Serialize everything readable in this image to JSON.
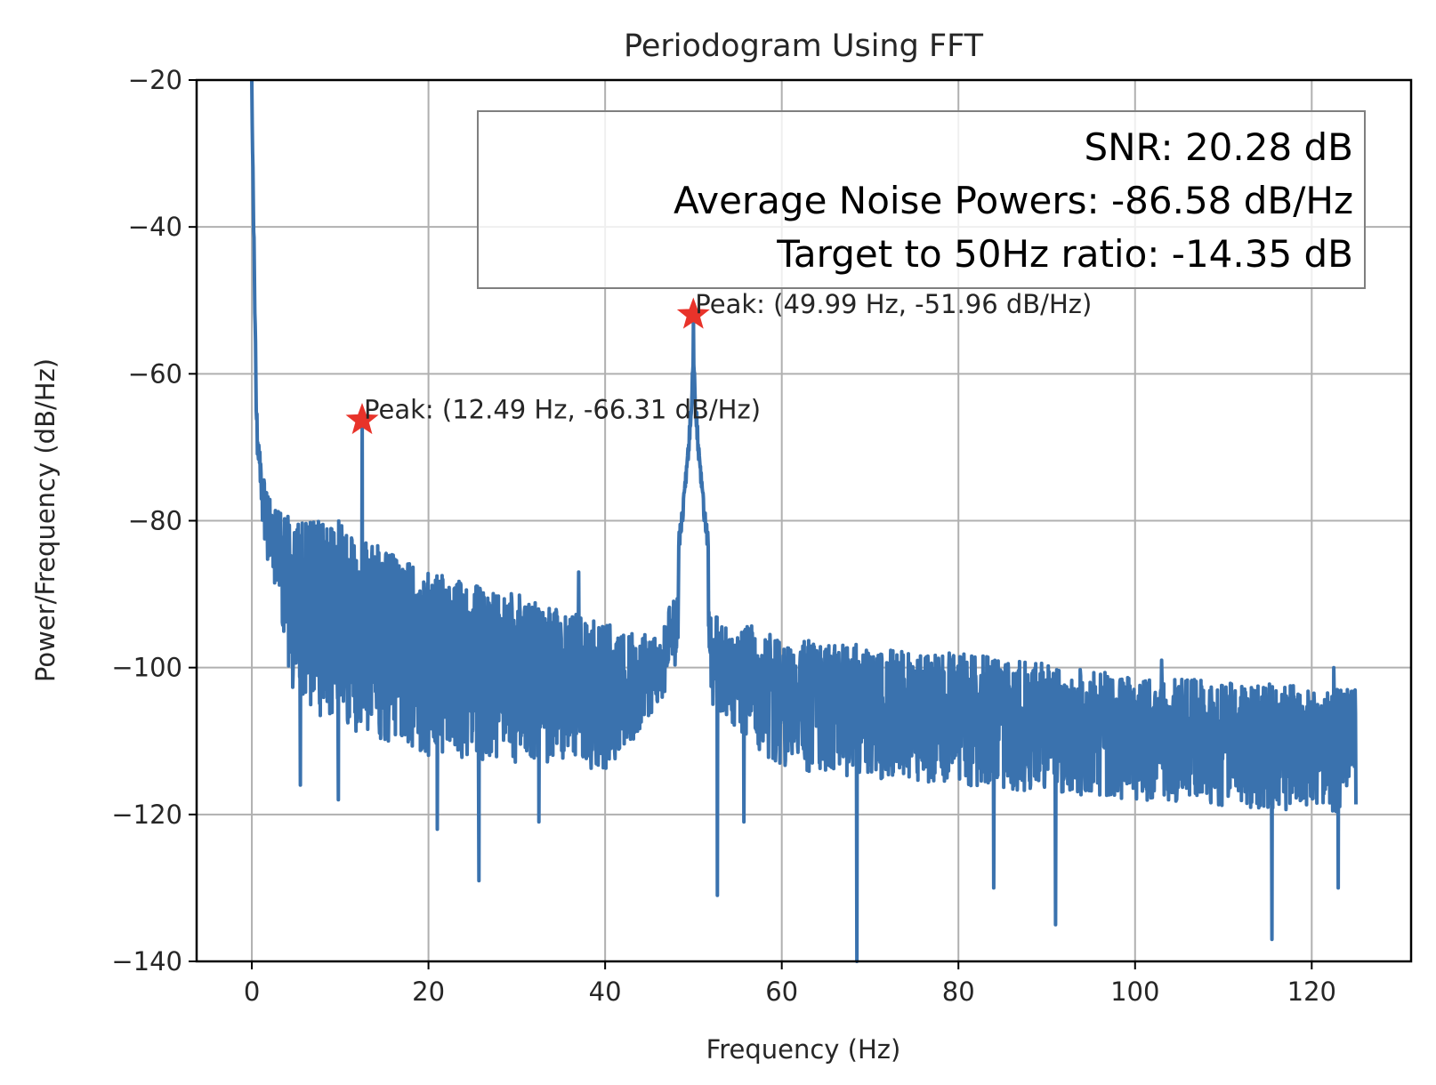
{
  "chart_data": {
    "type": "line",
    "title": "Periodogram Using FFT",
    "xlabel": "Frequency (Hz)",
    "ylabel": "Power/Frequency (dB/Hz)",
    "xlim": [
      -6.25,
      131.25
    ],
    "ylim": [
      -140,
      -20
    ],
    "xticks": [
      0,
      20,
      40,
      60,
      80,
      100,
      120
    ],
    "xtick_labels": [
      "0",
      "20",
      "40",
      "60",
      "80",
      "100",
      "120"
    ],
    "yticks": [
      -20,
      -40,
      -60,
      -80,
      -100,
      -120,
      -140
    ],
    "ytick_labels": [
      "−20",
      "−40",
      "−60",
      "−80",
      "−100",
      "−120",
      "−140"
    ],
    "grid": true,
    "line_color": "#3a72ae",
    "marker_color": "#e8332a",
    "series": [
      {
        "name": "periodogram",
        "description": "Noisy PSD from 0 to 125 Hz: DC spike above -20 dB at 0 Hz decaying to about -75 dB by 1 Hz; noise floor upper envelope about -80 dB near 5-12 Hz falling to about -102 dB near 125 Hz, with dips down to about -130 dB; narrow line at 12.49 Hz and broadened peak at 49.99 Hz",
        "envelope_points": [
          {
            "x": 0,
            "top": -20,
            "bottom": -60
          },
          {
            "x": 0.5,
            "top": -62,
            "bottom": -76
          },
          {
            "x": 1,
            "top": -70,
            "bottom": -78
          },
          {
            "x": 2,
            "top": -77,
            "bottom": -88
          },
          {
            "x": 5,
            "top": -80,
            "bottom": -105
          },
          {
            "x": 10,
            "top": -80,
            "bottom": -108
          },
          {
            "x": 15,
            "top": -84,
            "bottom": -110
          },
          {
            "x": 20,
            "top": -87,
            "bottom": -112
          },
          {
            "x": 30,
            "top": -90,
            "bottom": -113
          },
          {
            "x": 40,
            "top": -94,
            "bottom": -114
          },
          {
            "x": 46,
            "top": -96,
            "bottom": -106
          },
          {
            "x": 48,
            "top": -88,
            "bottom": -100
          },
          {
            "x": 52,
            "top": -92,
            "bottom": -105
          },
          {
            "x": 60,
            "top": -96,
            "bottom": -114
          },
          {
            "x": 80,
            "top": -98,
            "bottom": -116
          },
          {
            "x": 100,
            "top": -101,
            "bottom": -118
          },
          {
            "x": 125,
            "top": -103,
            "bottom": -120
          }
        ],
        "deep_dips": [
          {
            "x": 5.5,
            "y": -116
          },
          {
            "x": 9.8,
            "y": -118
          },
          {
            "x": 21,
            "y": -122
          },
          {
            "x": 25.7,
            "y": -129
          },
          {
            "x": 32.5,
            "y": -121
          },
          {
            "x": 52.7,
            "y": -131
          },
          {
            "x": 55.7,
            "y": -121
          },
          {
            "x": 68.5,
            "y": -140
          },
          {
            "x": 84,
            "y": -130
          },
          {
            "x": 91,
            "y": -135
          },
          {
            "x": 115.5,
            "y": -137
          },
          {
            "x": 123,
            "y": -130
          }
        ],
        "spikes": [
          {
            "x": 37,
            "y": -87
          },
          {
            "x": 103,
            "y": -99
          },
          {
            "x": 122.5,
            "y": -100
          }
        ]
      }
    ],
    "peaks": [
      {
        "x": 12.49,
        "y": -66.31,
        "label": "Peak: (12.49 Hz, -66.31 dB/Hz)"
      },
      {
        "x": 49.99,
        "y": -51.96,
        "label": "Peak: (49.99 Hz, -51.96 dB/Hz)"
      }
    ],
    "info_box": {
      "position": "top-right",
      "lines": [
        "SNR: 20.28 dB",
        "Average Noise Powers: -86.58 dB/Hz",
        "Target to 50Hz ratio: -14.35 dB"
      ]
    }
  }
}
